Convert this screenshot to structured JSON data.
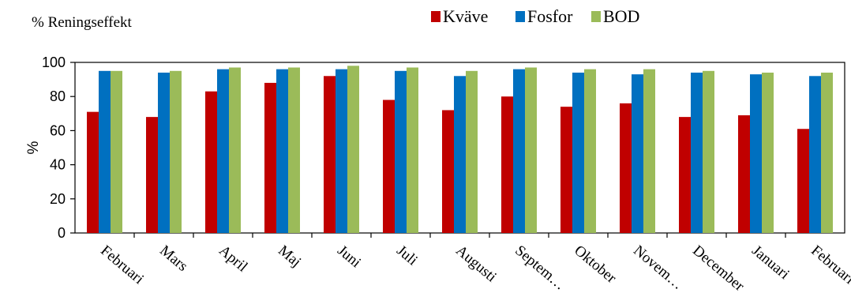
{
  "chart_data": {
    "type": "bar",
    "title": "% Reningseffekt",
    "ylabel": "%",
    "xlabel": "",
    "ylim": [
      0,
      100
    ],
    "yticks": [
      "0",
      "20",
      "40",
      "60",
      "80",
      "100"
    ],
    "grid": false,
    "legend_position": "top",
    "categories": [
      "Februari",
      "Mars",
      "April",
      "Maj",
      "Juni",
      "Juli",
      "Augusti",
      "Septem…",
      "Oktober",
      "Novem…",
      "December",
      "Januari",
      "Februari"
    ],
    "series": [
      {
        "name": "Kväve",
        "color": "#c00000",
        "values": [
          71,
          68,
          83,
          88,
          92,
          78,
          72,
          80,
          74,
          76,
          68,
          69,
          61
        ]
      },
      {
        "name": "Fosfor",
        "color": "#0070c0",
        "values": [
          95,
          94,
          96,
          96,
          96,
          95,
          92,
          96,
          94,
          93,
          94,
          93,
          92
        ]
      },
      {
        "name": "BOD",
        "color": "#9bbb59",
        "values": [
          95,
          95,
          97,
          97,
          98,
          97,
          95,
          97,
          96,
          96,
          95,
          94,
          94
        ]
      }
    ]
  }
}
